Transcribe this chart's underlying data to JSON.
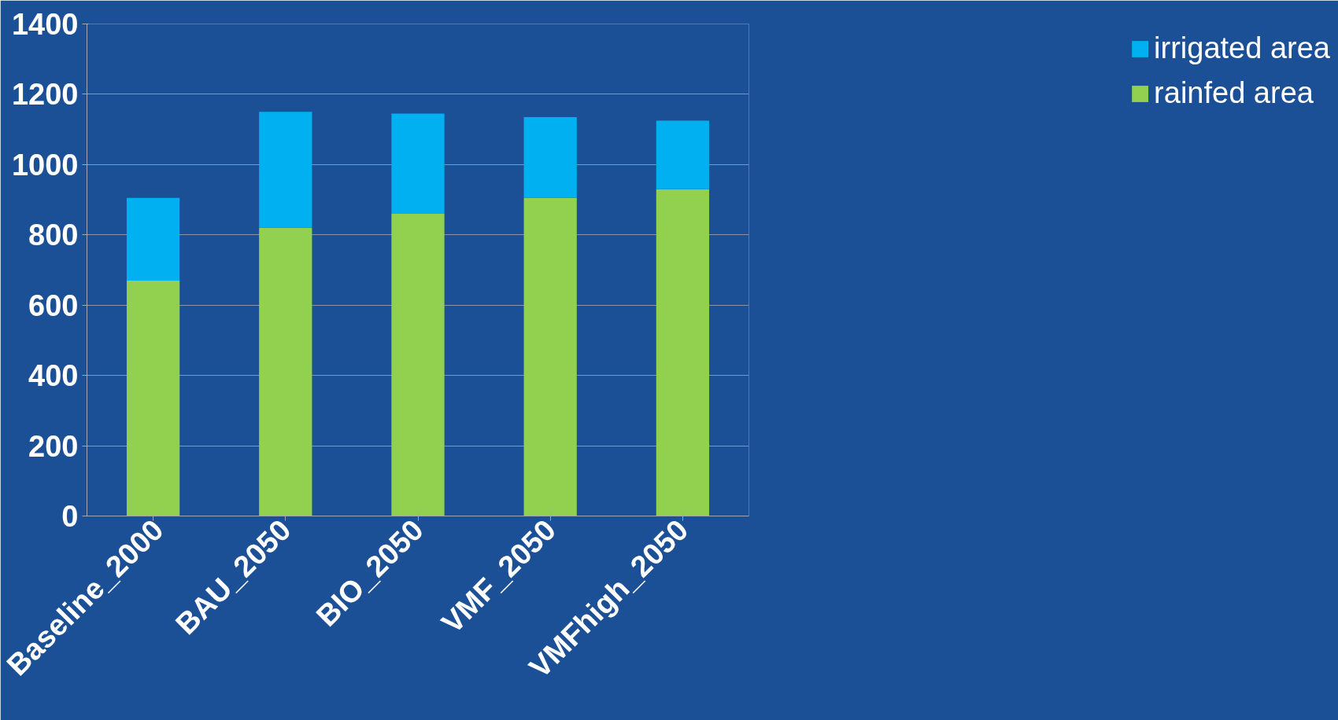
{
  "chart_data": {
    "type": "bar",
    "stacked": true,
    "categories": [
      "Baseline_2000",
      "BAU_2050",
      "BIO_2050",
      "VMF_2050",
      "VMFhigh_2050"
    ],
    "series": [
      {
        "name": "rainfed area",
        "color": "#92d050",
        "values": [
          670,
          820,
          860,
          905,
          930
        ]
      },
      {
        "name": "irrigated area",
        "color": "#00b0f0",
        "values": [
          235,
          330,
          285,
          230,
          195
        ]
      }
    ],
    "ylim": [
      0,
      1400
    ],
    "yticks": [
      0,
      200,
      400,
      600,
      800,
      1000,
      1200,
      1400
    ],
    "grid": "y",
    "legend": "right"
  }
}
